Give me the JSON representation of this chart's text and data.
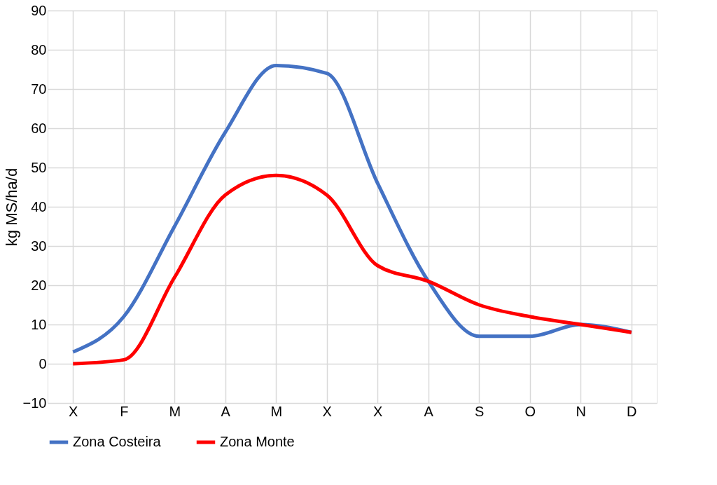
{
  "chart_data": {
    "type": "line",
    "ylabel": "kg MS/ha/d",
    "categories": [
      "X",
      "F",
      "M",
      "A",
      "M",
      "X",
      "X",
      "A",
      "S",
      "O",
      "N",
      "D"
    ],
    "series": [
      {
        "name": "Zona Costeira",
        "color": "#4472c4",
        "values": [
          3,
          12,
          35,
          59,
          76,
          74,
          46,
          21,
          7,
          7,
          10,
          8
        ]
      },
      {
        "name": "Zona Monte",
        "color": "#ff0000",
        "values": [
          0,
          1,
          22,
          43,
          48,
          43,
          25,
          21,
          15,
          12,
          10,
          8
        ]
      }
    ],
    "ylim": [
      -10,
      90
    ],
    "yticks": [
      -10,
      0,
      10,
      20,
      30,
      40,
      50,
      60,
      70,
      80,
      90
    ],
    "grid": true,
    "legend": "bottom",
    "marker": "none",
    "line_style": "solid"
  }
}
